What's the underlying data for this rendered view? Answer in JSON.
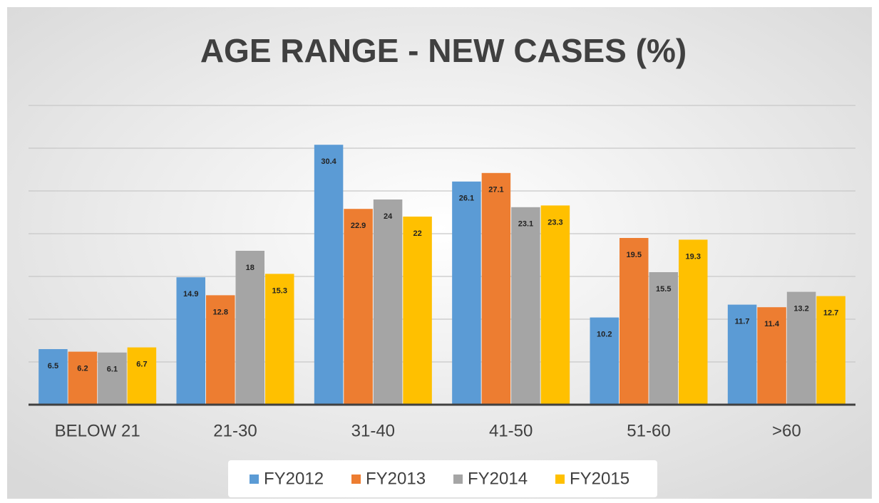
{
  "chart_data": {
    "type": "bar",
    "title": "AGE RANGE - NEW CASES (%)",
    "categories": [
      "BELOW 21",
      "21-30",
      "31-40",
      "41-50",
      "51-60",
      ">60"
    ],
    "series": [
      {
        "name": "FY2012",
        "color": "#5b9bd5",
        "values": [
          6.5,
          14.9,
          30.4,
          26.1,
          10.2,
          11.7
        ]
      },
      {
        "name": "FY2013",
        "color": "#ed7d31",
        "values": [
          6.2,
          12.8,
          22.9,
          27.1,
          19.5,
          11.4
        ]
      },
      {
        "name": "FY2014",
        "color": "#a5a5a5",
        "values": [
          6.1,
          18,
          24,
          23.1,
          15.5,
          13.2
        ]
      },
      {
        "name": "FY2015",
        "color": "#ffc000",
        "values": [
          6.7,
          15.3,
          22,
          23.3,
          19.3,
          12.7
        ]
      }
    ],
    "ylim": [
      0,
      35
    ],
    "yticks": [
      0,
      5,
      10,
      15,
      20,
      25,
      30,
      35
    ],
    "grid": true,
    "legend": "bottom"
  }
}
